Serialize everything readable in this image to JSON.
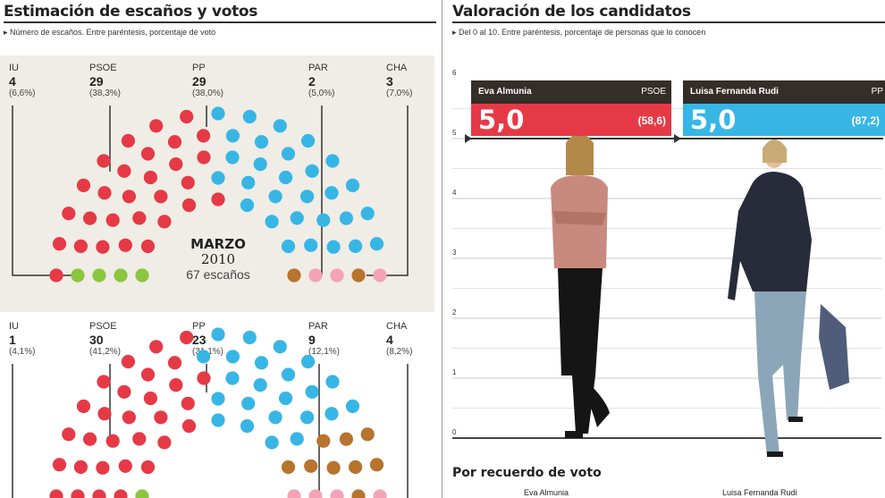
{
  "left": {
    "title": "Estimación de escaños y votos",
    "subtitle": "▸ Número de escaños. Entre paréntesis, porcentaje de voto"
  },
  "right": {
    "title": "Valoración de los candidatos",
    "subtitle": "▸ Del 0 al 10. Entre paréntesis, porcentaje de personas que lo conocen"
  },
  "colors": {
    "IU": "#8cc63f",
    "PSOE": "#e63946",
    "PP": "#37b6e6",
    "PAR": "#b8732c",
    "CHA": "#f4a3b6",
    "panel": "#efede5",
    "card_dark": "#332e27"
  },
  "chart_data": [
    {
      "type": "hemicycle",
      "title": "MARZO",
      "year": "2010",
      "total_label": "67 escaños",
      "parties": [
        {
          "name": "IU",
          "seats": "4",
          "pct": "(6,6%)"
        },
        {
          "name": "PSOE",
          "seats": "29",
          "pct": "(38,3%)"
        },
        {
          "name": "PP",
          "seats": "29",
          "pct": "(38,0%)"
        },
        {
          "name": "PAR",
          "seats": "2",
          "pct": "(5,0%)"
        },
        {
          "name": "CHA",
          "seats": "3",
          "pct": "(7,0%)"
        }
      ]
    },
    {
      "type": "hemicycle",
      "parties": [
        {
          "name": "IU",
          "seats": "1",
          "pct": "(4,1%)"
        },
        {
          "name": "PSOE",
          "seats": "30",
          "pct": "(41,2%)"
        },
        {
          "name": "PP",
          "seats": "23",
          "pct": "(31,1%)"
        },
        {
          "name": "PAR",
          "seats": "9",
          "pct": "(12,1%)"
        },
        {
          "name": "CHA",
          "seats": "4",
          "pct": "(8,2%)"
        }
      ]
    },
    {
      "type": "bar",
      "yticks": [
        "0",
        "1",
        "2",
        "3",
        "4",
        "5",
        "6"
      ],
      "ylim": [
        0,
        6
      ],
      "candidates": [
        {
          "name": "Eva Almunia",
          "party": "PSOE",
          "score": "5,0",
          "known": "(58,6)",
          "value": 5.0,
          "color": "#e63946"
        },
        {
          "name": "Luisa Fernanda Rudi",
          "party": "PP",
          "score": "5,0",
          "known": "(87,2)",
          "value": 5.0,
          "color": "#37b6e6"
        }
      ]
    }
  ],
  "footer": {
    "title": "Por recuerdo de voto",
    "name1": "Eva Almunia",
    "name2": "Luisa Fernanda Rudi"
  }
}
